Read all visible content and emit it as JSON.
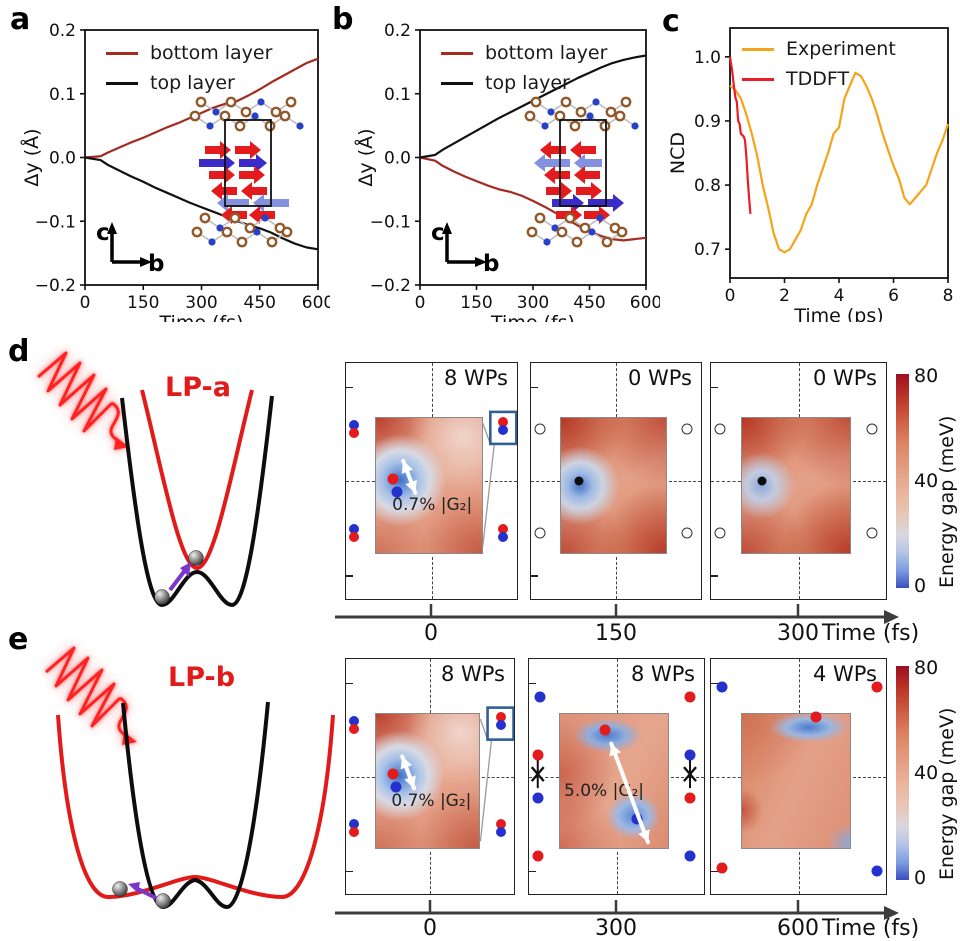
{
  "panel_letters": {
    "a": "a",
    "b": "b",
    "c": "c",
    "d": "d",
    "e": "e"
  },
  "chart_data": [
    {
      "id": "a",
      "type": "line",
      "xlabel": "Time (fs)",
      "ylabel": "Δy (Å)",
      "xlim": [
        0,
        600
      ],
      "ylim": [
        -0.2,
        0.2
      ],
      "xticks": {
        "values": [
          0,
          150,
          300,
          450,
          600
        ],
        "labels": [
          "0",
          "150",
          "300",
          "450",
          "600"
        ]
      },
      "yticks": {
        "values": [
          -0.2,
          -0.1,
          0,
          0.1,
          0.2
        ],
        "labels": [
          "−0.2",
          "−0.1",
          "0.0",
          "0.1",
          "0.2"
        ]
      },
      "legend_position": "upper left",
      "axes_indicator": {
        "up": "c",
        "right": "b"
      },
      "series": [
        {
          "name": "bottom layer",
          "color": "#a52a21",
          "x": [
            0,
            40,
            60,
            90,
            120,
            150,
            180,
            210,
            240,
            270,
            300,
            330,
            360,
            390,
            420,
            450,
            480,
            510,
            540,
            570,
            600
          ],
          "y": [
            0,
            0.002,
            0.008,
            0.016,
            0.024,
            0.031,
            0.039,
            0.047,
            0.054,
            0.062,
            0.07,
            0.078,
            0.084,
            0.088,
            0.097,
            0.107,
            0.118,
            0.128,
            0.138,
            0.148,
            0.155
          ]
        },
        {
          "name": "top layer",
          "color": "#111111",
          "x": [
            0,
            40,
            60,
            90,
            120,
            150,
            180,
            210,
            240,
            270,
            300,
            330,
            360,
            390,
            420,
            450,
            480,
            510,
            540,
            570,
            600
          ],
          "y": [
            0,
            -0.004,
            -0.012,
            -0.021,
            -0.03,
            -0.038,
            -0.047,
            -0.055,
            -0.063,
            -0.071,
            -0.078,
            -0.085,
            -0.092,
            -0.099,
            -0.106,
            -0.111,
            -0.118,
            -0.127,
            -0.135,
            -0.141,
            -0.144
          ]
        }
      ]
    },
    {
      "id": "b",
      "type": "line",
      "xlabel": "Time (fs)",
      "ylabel": "Δy (Å)",
      "xlim": [
        0,
        600
      ],
      "ylim": [
        -0.2,
        0.2
      ],
      "xticks": {
        "values": [
          0,
          150,
          300,
          450,
          600
        ],
        "labels": [
          "0",
          "150",
          "300",
          "450",
          "600"
        ]
      },
      "yticks": {
        "values": [
          -0.2,
          -0.1,
          0,
          0.1,
          0.2
        ],
        "labels": [
          "−0.2",
          "−0.1",
          "0.0",
          "0.1",
          "0.2"
        ]
      },
      "legend_position": "upper left",
      "axes_indicator": {
        "up": "c",
        "right": "b"
      },
      "series": [
        {
          "name": "bottom layer",
          "color": "#a52a21",
          "x": [
            0,
            40,
            60,
            90,
            120,
            150,
            180,
            210,
            240,
            270,
            300,
            330,
            360,
            390,
            420,
            450,
            480,
            510,
            540,
            570,
            600
          ],
          "y": [
            0,
            -0.005,
            -0.013,
            -0.022,
            -0.03,
            -0.037,
            -0.044,
            -0.05,
            -0.054,
            -0.06,
            -0.068,
            -0.077,
            -0.087,
            -0.097,
            -0.107,
            -0.116,
            -0.123,
            -0.128,
            -0.13,
            -0.128,
            -0.126
          ]
        },
        {
          "name": "top layer",
          "color": "#111111",
          "x": [
            0,
            40,
            60,
            90,
            120,
            150,
            180,
            210,
            240,
            270,
            300,
            330,
            360,
            390,
            420,
            450,
            480,
            510,
            540,
            570,
            600
          ],
          "y": [
            0,
            0.004,
            0.012,
            0.022,
            0.032,
            0.042,
            0.052,
            0.062,
            0.071,
            0.08,
            0.089,
            0.098,
            0.107,
            0.116,
            0.125,
            0.133,
            0.141,
            0.148,
            0.153,
            0.157,
            0.16
          ]
        }
      ]
    },
    {
      "id": "c",
      "type": "line",
      "xlabel": "Time (ps)",
      "ylabel": "NCD",
      "xlim": [
        0,
        8
      ],
      "ylim": [
        0.655,
        1.045
      ],
      "xticks": {
        "values": [
          0,
          2,
          4,
          6,
          8
        ],
        "labels": [
          "0",
          "2",
          "4",
          "6",
          "8"
        ]
      },
      "yticks": {
        "values": [
          0.7,
          0.8,
          0.9,
          1.0
        ],
        "labels": [
          "0.7",
          "0.8",
          "0.9",
          "1.0"
        ]
      },
      "legend_position": "upper left",
      "series": [
        {
          "name": "Experiment",
          "color": "#f5a31a",
          "x": [
            0,
            0.2,
            0.4,
            0.6,
            0.8,
            1.0,
            1.2,
            1.4,
            1.6,
            1.8,
            2.0,
            2.2,
            2.4,
            2.6,
            2.8,
            3.0,
            3.2,
            3.4,
            3.6,
            3.8,
            4.0,
            4.2,
            4.4,
            4.6,
            4.8,
            5.0,
            5.2,
            5.4,
            5.6,
            5.8,
            6.0,
            6.2,
            6.4,
            6.6,
            6.8,
            7.0,
            7.2,
            7.4,
            7.6,
            7.8,
            8.0
          ],
          "y": [
            0.955,
            0.948,
            0.935,
            0.91,
            0.88,
            0.845,
            0.8,
            0.765,
            0.725,
            0.7,
            0.695,
            0.7,
            0.715,
            0.73,
            0.755,
            0.77,
            0.8,
            0.825,
            0.85,
            0.88,
            0.89,
            0.935,
            0.955,
            0.975,
            0.97,
            0.955,
            0.935,
            0.91,
            0.88,
            0.855,
            0.83,
            0.81,
            0.78,
            0.77,
            0.78,
            0.79,
            0.8,
            0.825,
            0.85,
            0.87,
            0.895
          ]
        },
        {
          "name": "TDDFT",
          "color": "#ec1c24",
          "x": [
            0,
            0.08,
            0.15,
            0.2,
            0.25,
            0.3,
            0.35,
            0.4,
            0.45,
            0.5,
            0.55,
            0.6,
            0.65,
            0.7,
            0.75
          ],
          "y": [
            1.0,
            0.978,
            0.952,
            0.936,
            0.93,
            0.9,
            0.896,
            0.88,
            0.878,
            0.876,
            0.87,
            0.845,
            0.81,
            0.78,
            0.755
          ]
        }
      ]
    }
  ],
  "schematics": {
    "d": {
      "label": "LP-a",
      "pulse": "laser-pulse",
      "balls": 2,
      "arrow_color": "#7a35c9"
    },
    "e": {
      "label": "LP-b",
      "pulse": "laser-pulse",
      "balls": 2,
      "arrow_color": "#7a35c9"
    }
  },
  "wp_rows": [
    {
      "id": "d",
      "panels": [
        {
          "label": "8 WPs",
          "ann": "0.7% |G₂|",
          "heat": "heat-d1",
          "callout": true,
          "arrow": {
            "x1": 0.335,
            "y1": 0.415,
            "x2": 0.405,
            "y2": 0.55
          },
          "dots": [
            {
              "t": "pair-br",
              "x": 0.046,
              "y": 0.28
            },
            {
              "t": "pair-br",
              "x": 0.046,
              "y": 0.72
            },
            {
              "t": "pair-rb",
              "x": 0.92,
              "y": 0.265
            },
            {
              "t": "pair-rb",
              "x": 0.92,
              "y": 0.72
            },
            {
              "t": "red",
              "x": 0.277,
              "y": 0.49
            },
            {
              "t": "blue",
              "x": 0.3,
              "y": 0.545
            }
          ]
        },
        {
          "label": "0 WPs",
          "ann": null,
          "heat": "heat-d2",
          "callout": false,
          "dots": [
            {
              "t": "open",
              "x": 0.05,
              "y": 0.28
            },
            {
              "t": "open",
              "x": 0.05,
              "y": 0.72
            },
            {
              "t": "open",
              "x": 0.92,
              "y": 0.28
            },
            {
              "t": "open",
              "x": 0.92,
              "y": 0.72
            },
            {
              "t": "black",
              "x": 0.28,
              "y": 0.5
            }
          ]
        },
        {
          "label": "0 WPs",
          "ann": null,
          "heat": "heat-d3",
          "callout": false,
          "dots": [
            {
              "t": "open",
              "x": 0.05,
              "y": 0.28
            },
            {
              "t": "open",
              "x": 0.05,
              "y": 0.72
            },
            {
              "t": "open",
              "x": 0.92,
              "y": 0.28
            },
            {
              "t": "open",
              "x": 0.92,
              "y": 0.72
            },
            {
              "t": "black",
              "x": 0.29,
              "y": 0.5
            }
          ]
        }
      ],
      "time_axis": {
        "labels": [
          "0",
          "150",
          "300"
        ],
        "unit": "Time (fs)"
      }
    },
    {
      "id": "e",
      "panels": [
        {
          "label": "8 WPs",
          "ann": "0.7% |G₂|",
          "heat": "heat-d1",
          "callout": true,
          "arrow": {
            "x1": 0.335,
            "y1": 0.415,
            "x2": 0.405,
            "y2": 0.55
          },
          "dots": [
            {
              "t": "pair-br",
              "x": 0.046,
              "y": 0.28
            },
            {
              "t": "pair-br",
              "x": 0.046,
              "y": 0.72
            },
            {
              "t": "pair-rb",
              "x": 0.92,
              "y": 0.265
            },
            {
              "t": "pair-rb",
              "x": 0.92,
              "y": 0.72
            },
            {
              "t": "red",
              "x": 0.277,
              "y": 0.49
            },
            {
              "t": "blue",
              "x": 0.3,
              "y": 0.545
            }
          ]
        },
        {
          "label": "8 WPs",
          "ann": "5.0% |G₂|",
          "heat": "heat-e2",
          "callout": false,
          "arrow": {
            "x1": 0.47,
            "y1": 0.36,
            "x2": 0.68,
            "y2": 0.78
          },
          "dots": [
            {
              "t": "blue",
              "x": 0.06,
              "y": 0.16
            },
            {
              "t": "red",
              "x": 0.05,
              "y": 0.41
            },
            {
              "t": "xmark",
              "x": 0.05,
              "y": 0.49
            },
            {
              "t": "blue",
              "x": 0.05,
              "y": 0.59
            },
            {
              "t": "red",
              "x": 0.05,
              "y": 0.84
            },
            {
              "t": "red",
              "x": 0.92,
              "y": 0.16
            },
            {
              "t": "blue",
              "x": 0.92,
              "y": 0.41
            },
            {
              "t": "xmark",
              "x": 0.92,
              "y": 0.49
            },
            {
              "t": "red",
              "x": 0.92,
              "y": 0.59
            },
            {
              "t": "blue",
              "x": 0.92,
              "y": 0.84
            },
            {
              "t": "red",
              "x": 0.435,
              "y": 0.3
            },
            {
              "t": "blue",
              "x": 0.615,
              "y": 0.68
            }
          ]
        },
        {
          "label": "4 WPs",
          "ann": null,
          "heat": "heat-e3",
          "callout": false,
          "dots": [
            {
              "t": "blue",
              "x": 0.06,
              "y": 0.12
            },
            {
              "t": "red",
              "x": 0.95,
              "y": 0.12
            },
            {
              "t": "red",
              "x": 0.06,
              "y": 0.89
            },
            {
              "t": "blue",
              "x": 0.95,
              "y": 0.9
            },
            {
              "t": "red",
              "x": 0.6,
              "y": 0.245
            }
          ]
        }
      ],
      "time_axis": {
        "labels": [
          "0",
          "300",
          "600"
        ],
        "unit": "Time (fs)"
      }
    }
  ],
  "colorbar": {
    "title": "Energy gap (meV)",
    "ticks": [
      "80",
      "40",
      "0"
    ]
  }
}
